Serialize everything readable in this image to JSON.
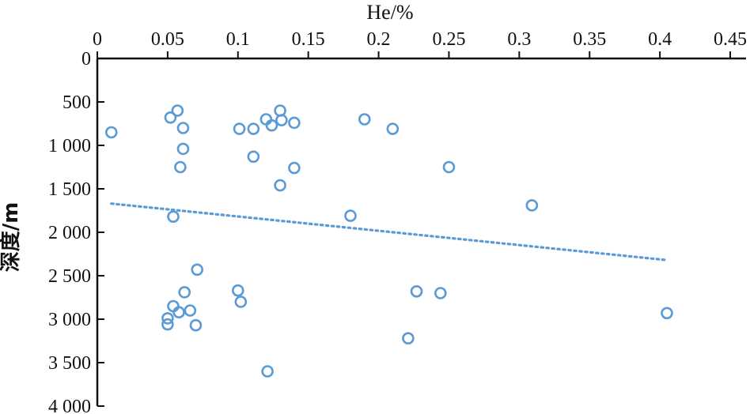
{
  "chart_data": {
    "type": "scatter",
    "xlabel": "He/%",
    "ylabel": "深度/m",
    "x_axis_position": "top",
    "y_axis_inverted": true,
    "xlim": [
      0,
      0.45
    ],
    "ylim": [
      0,
      4000
    ],
    "x_ticks": [
      "0",
      "0.05",
      "0.1",
      "0.15",
      "0.2",
      "0.25",
      "0.3",
      "0.35",
      "0.4",
      "0.45"
    ],
    "y_ticks": [
      "0",
      "500",
      "1 000",
      "1 500",
      "2 000",
      "2 500",
      "3 000",
      "3 500",
      "4 000"
    ],
    "colors": {
      "points": "#5b9bd5",
      "trend": "#5b9bd5",
      "axis": "#111111"
    },
    "series": [
      {
        "marker": "open-circle",
        "points": [
          {
            "x": 0.01,
            "y": 850
          },
          {
            "x": 0.052,
            "y": 680
          },
          {
            "x": 0.057,
            "y": 600
          },
          {
            "x": 0.061,
            "y": 800
          },
          {
            "x": 0.061,
            "y": 1040
          },
          {
            "x": 0.059,
            "y": 1250
          },
          {
            "x": 0.054,
            "y": 1820
          },
          {
            "x": 0.101,
            "y": 810
          },
          {
            "x": 0.111,
            "y": 810
          },
          {
            "x": 0.111,
            "y": 1130
          },
          {
            "x": 0.12,
            "y": 700
          },
          {
            "x": 0.124,
            "y": 770
          },
          {
            "x": 0.13,
            "y": 600
          },
          {
            "x": 0.131,
            "y": 710
          },
          {
            "x": 0.14,
            "y": 740
          },
          {
            "x": 0.14,
            "y": 1260
          },
          {
            "x": 0.13,
            "y": 1460
          },
          {
            "x": 0.18,
            "y": 1810
          },
          {
            "x": 0.19,
            "y": 700
          },
          {
            "x": 0.21,
            "y": 810
          },
          {
            "x": 0.25,
            "y": 1250
          },
          {
            "x": 0.309,
            "y": 1690
          },
          {
            "x": 0.071,
            "y": 2430
          },
          {
            "x": 0.062,
            "y": 2690
          },
          {
            "x": 0.054,
            "y": 2850
          },
          {
            "x": 0.058,
            "y": 2920
          },
          {
            "x": 0.066,
            "y": 2900
          },
          {
            "x": 0.05,
            "y": 2990
          },
          {
            "x": 0.05,
            "y": 3060
          },
          {
            "x": 0.07,
            "y": 3070
          },
          {
            "x": 0.1,
            "y": 2670
          },
          {
            "x": 0.102,
            "y": 2800
          },
          {
            "x": 0.227,
            "y": 2680
          },
          {
            "x": 0.244,
            "y": 2700
          },
          {
            "x": 0.221,
            "y": 3220
          },
          {
            "x": 0.121,
            "y": 3600
          },
          {
            "x": 0.405,
            "y": 2930
          }
        ]
      }
    ],
    "trendline": {
      "style": "dotted",
      "x": [
        0.01,
        0.405
      ],
      "y": [
        1670,
        2320
      ]
    }
  }
}
